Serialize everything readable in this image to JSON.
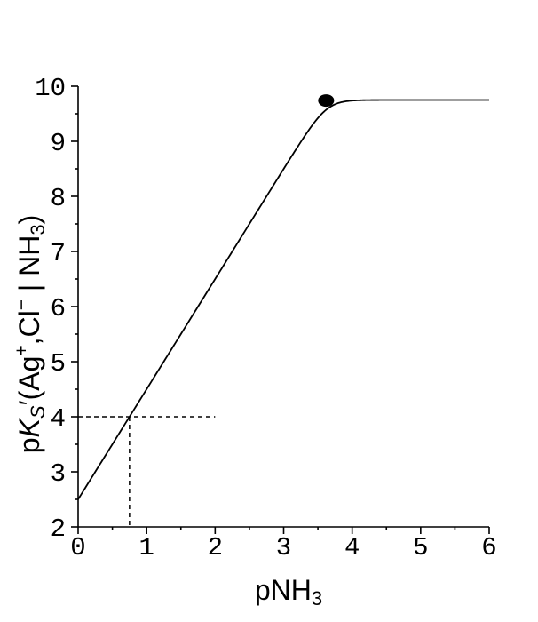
{
  "chart_data": {
    "type": "line",
    "xlabel": {
      "main": "pNH",
      "sub": "3"
    },
    "ylabel": {
      "p": "p",
      "k": "K",
      "ksub": "S",
      "prime_open": "′(Ag",
      "sup_plus": "+",
      "comma_cl": ",Cl",
      "sup_minus": "−",
      "bar_nh": " | NH",
      "sub3": "3",
      "close": ")"
    },
    "xlim": [
      0,
      6
    ],
    "ylim": [
      2,
      10
    ],
    "xticks": [
      "0",
      "1",
      "2",
      "3",
      "4",
      "5",
      "6"
    ],
    "yticks": [
      "2",
      "3",
      "4",
      "5",
      "6",
      "7",
      "8",
      "9",
      "10"
    ],
    "curve_model": {
      "intercept": 2.5,
      "slope": 2,
      "plateau": 9.75
    },
    "series": [
      {
        "x": [
          0,
          0.5,
          1,
          1.5,
          2,
          2.5,
          3,
          3.25,
          3.5,
          3.75,
          4,
          4.25,
          4.5,
          5,
          5.5,
          6
        ],
        "y": [
          2.5,
          3.5,
          4.5,
          5.5,
          6.5,
          7.5,
          8.5,
          8.97,
          9.37,
          9.6,
          9.7,
          9.73,
          9.74,
          9.75,
          9.75,
          9.75
        ]
      }
    ],
    "marker": {
      "x": 3.62,
      "y": 9.74
    },
    "guide": {
      "x": 0.75,
      "y": 4,
      "x_end": 2
    }
  }
}
